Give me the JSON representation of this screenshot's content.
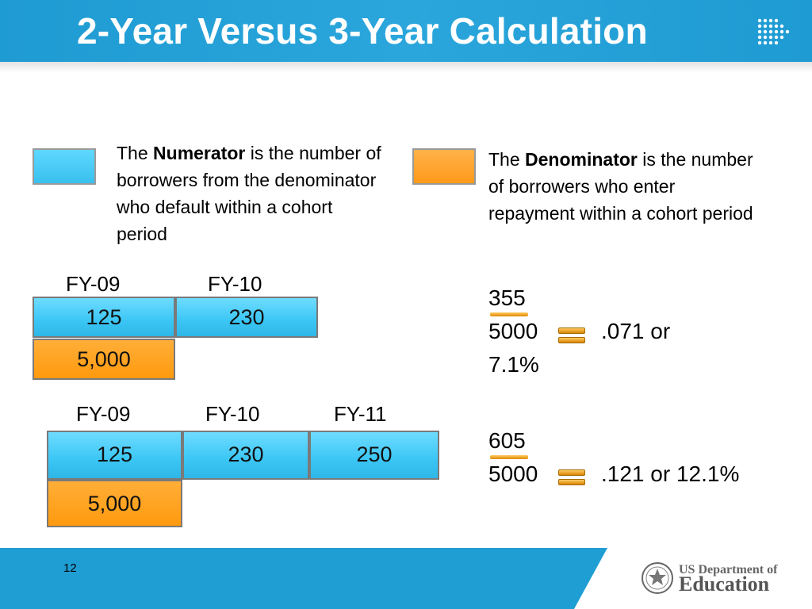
{
  "slide": {
    "title": "2-Year Versus 3-Year Calculation",
    "page_number": "12"
  },
  "numerator_def": {
    "prefix": "The ",
    "term": "Numerator",
    "rest": " is the number of borrowers from the denominator who default within a cohort period"
  },
  "denominator_def": {
    "prefix": "The ",
    "term": "Denominator",
    "rest": " is the number of borrowers who enter repayment within a cohort period"
  },
  "two_year": {
    "years": [
      "FY-09",
      "FY-10"
    ],
    "numerators": [
      "125",
      "230"
    ],
    "denominator": "5,000",
    "calc_num": "355",
    "calc_den": "5000",
    "result_a": ".071 or",
    "result_b": "7.1%"
  },
  "three_year": {
    "years": [
      "FY-09",
      "FY-10",
      "FY-11"
    ],
    "numerators": [
      "125",
      "230",
      "250"
    ],
    "denominator": "5,000",
    "calc_num": "605",
    "calc_den": "5000",
    "result": ".121 or 12.1%"
  },
  "footer": {
    "org_line1": "US Department of",
    "org_line2": "Education"
  },
  "colors": {
    "header_blue": "#1f9bd3",
    "box_blue": "#3ac6f5",
    "box_orange": "#ff9a0e"
  }
}
